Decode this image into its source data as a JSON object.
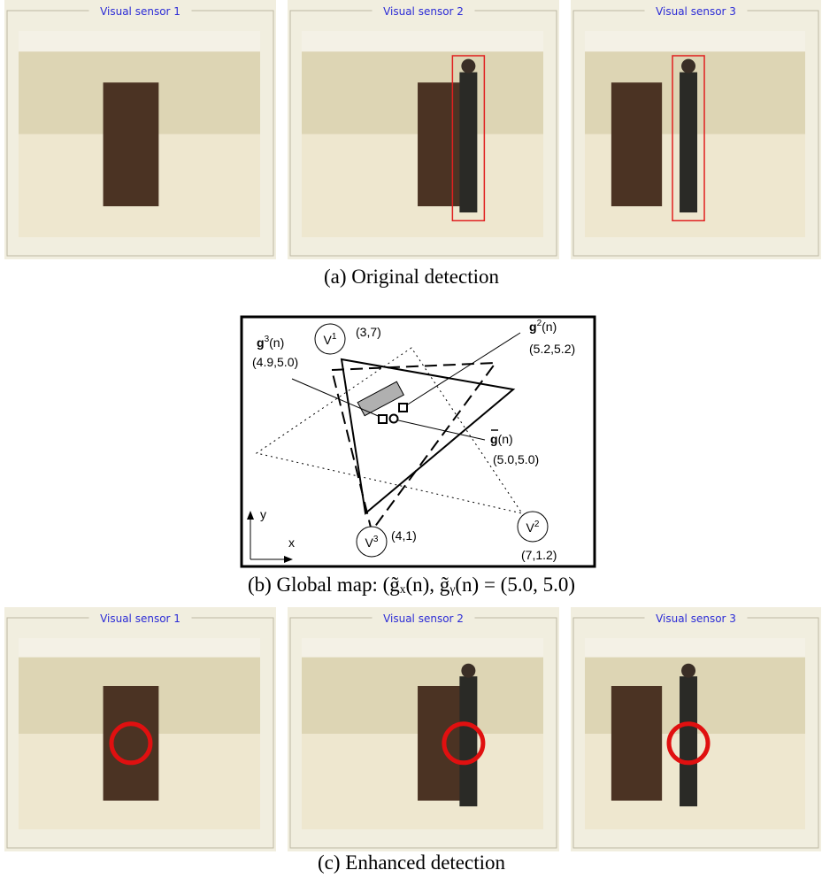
{
  "panel_a": {
    "sensors": [
      "Visual sensor 1",
      "Visual sensor 2",
      "Visual sensor 3"
    ],
    "caption": "(a)  Original detection"
  },
  "global_map": {
    "v1": {
      "letter": "V",
      "sup": "1",
      "coord": "(3,7)"
    },
    "v2": {
      "letter": "V",
      "sup": "2",
      "coord": "(7,1.2)"
    },
    "v3": {
      "letter": "V",
      "sup": "3",
      "coord": "(4,1)"
    },
    "g3": {
      "base": "g",
      "sup": "3",
      "arg": "(n)",
      "coord": "(4.9,5.0)"
    },
    "g2": {
      "base": "g",
      "sup": "2",
      "arg": "(n)",
      "coord": "(5.2,5.2)"
    },
    "g_bar": {
      "base": "g",
      "arg": "(n)",
      "coord": "(5.0,5.0)"
    },
    "axis_x": "x",
    "axis_y": "y"
  },
  "caption_b": "(b)  Global map: (g̃ₓ(n), g̃ᵧ(n) = (5.0, 5.0)",
  "panel_c": {
    "sensors": [
      "Visual sensor 1",
      "Visual sensor 2",
      "Visual sensor 3"
    ],
    "caption": "(c)  Enhanced detection"
  }
}
